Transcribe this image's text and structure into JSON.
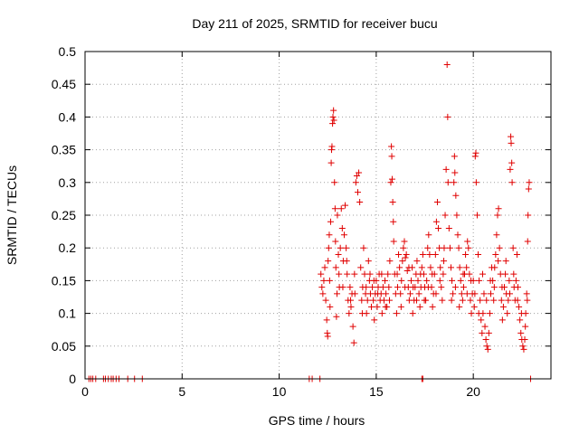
{
  "chart_data": {
    "type": "scatter",
    "title": "Day 211 of 2025, SRMTID for receiver bucu",
    "xlabel": "GPS time / hours",
    "ylabel": "SRMTID / TECUs",
    "xlim": [
      0,
      24
    ],
    "ylim": [
      0,
      0.5
    ],
    "xticks": [
      0,
      5,
      10,
      15,
      20
    ],
    "xtick_labels": [
      "0",
      "5",
      "10",
      "15",
      "20"
    ],
    "yticks": [
      0,
      0.05,
      0.1,
      0.15,
      0.2,
      0.25,
      0.3,
      0.35,
      0.4,
      0.45,
      0.5
    ],
    "ytick_labels": [
      "0",
      "0.05",
      "0.1",
      "0.15",
      "0.2",
      "0.25",
      "0.3",
      "0.35",
      "0.4",
      "0.45",
      "0.5"
    ],
    "grid": true,
    "marker": "+",
    "colors": {
      "series": "#e00000",
      "frame": "#000000",
      "grid": "#a0a0a0"
    },
    "series": [
      {
        "name": "SRMTID",
        "points": [
          [
            0.2,
            0
          ],
          [
            0.3,
            0
          ],
          [
            0.4,
            0
          ],
          [
            0.55,
            0
          ],
          [
            0.95,
            0
          ],
          [
            1.05,
            0
          ],
          [
            1.2,
            0
          ],
          [
            1.35,
            0
          ],
          [
            1.45,
            0
          ],
          [
            1.6,
            0
          ],
          [
            1.75,
            0
          ],
          [
            2.2,
            0
          ],
          [
            2.55,
            0
          ],
          [
            2.95,
            0
          ],
          [
            11.55,
            0
          ],
          [
            11.7,
            0
          ],
          [
            12.1,
            0
          ],
          [
            17.35,
            0
          ],
          [
            17.4,
            0
          ],
          [
            22.95,
            0
          ],
          [
            12.15,
            0.16
          ],
          [
            12.2,
            0.14
          ],
          [
            12.25,
            0.13
          ],
          [
            12.3,
            0.15
          ],
          [
            12.35,
            0.17
          ],
          [
            12.4,
            0.12
          ],
          [
            12.45,
            0.09
          ],
          [
            12.48,
            0.07
          ],
          [
            12.5,
            0.065
          ],
          [
            12.52,
            0.18
          ],
          [
            12.55,
            0.2
          ],
          [
            12.58,
            0.22
          ],
          [
            12.6,
            0.15
          ],
          [
            12.62,
            0.11
          ],
          [
            12.65,
            0.24
          ],
          [
            12.68,
            0.33
          ],
          [
            12.7,
            0.35
          ],
          [
            12.72,
            0.355
          ],
          [
            12.75,
            0.39
          ],
          [
            12.77,
            0.4
          ],
          [
            12.8,
            0.41
          ],
          [
            12.82,
            0.395
          ],
          [
            12.85,
            0.3
          ],
          [
            12.88,
            0.26
          ],
          [
            12.9,
            0.21
          ],
          [
            12.92,
            0.17
          ],
          [
            12.95,
            0.095
          ],
          [
            12.98,
            0.13
          ],
          [
            13.0,
            0.25
          ],
          [
            13.05,
            0.19
          ],
          [
            13.1,
            0.14
          ],
          [
            13.15,
            0.2
          ],
          [
            13.2,
            0.26
          ],
          [
            13.25,
            0.23
          ],
          [
            13.3,
            0.18
          ],
          [
            13.35,
            0.22
          ],
          [
            13.4,
            0.265
          ],
          [
            13.45,
            0.2
          ],
          [
            13.5,
            0.16
          ],
          [
            13.55,
            0.12
          ],
          [
            13.6,
            0.1
          ],
          [
            13.65,
            0.14
          ],
          [
            13.7,
            0.11
          ],
          [
            13.75,
            0.13
          ],
          [
            13.8,
            0.08
          ],
          [
            13.85,
            0.055
          ],
          [
            13.9,
            0.13
          ],
          [
            13.95,
            0.3
          ],
          [
            14.0,
            0.31
          ],
          [
            14.05,
            0.285
          ],
          [
            14.1,
            0.315
          ],
          [
            14.15,
            0.27
          ],
          [
            14.2,
            0.17
          ],
          [
            14.25,
            0.12
          ],
          [
            14.3,
            0.14
          ],
          [
            14.35,
            0.2
          ],
          [
            14.4,
            0.16
          ],
          [
            14.45,
            0.13
          ],
          [
            14.5,
            0.1
          ],
          [
            14.55,
            0.12
          ],
          [
            14.6,
            0.18
          ],
          [
            14.65,
            0.15
          ],
          [
            14.7,
            0.13
          ],
          [
            14.75,
            0.11
          ],
          [
            14.8,
            0.14
          ],
          [
            14.85,
            0.12
          ],
          [
            14.9,
            0.09
          ],
          [
            14.95,
            0.13
          ],
          [
            15.0,
            0.15
          ],
          [
            15.05,
            0.11
          ],
          [
            15.1,
            0.14
          ],
          [
            15.15,
            0.16
          ],
          [
            15.2,
            0.12
          ],
          [
            15.25,
            0.13
          ],
          [
            15.3,
            0.1
          ],
          [
            15.35,
            0.14
          ],
          [
            15.4,
            0.12
          ],
          [
            15.45,
            0.15
          ],
          [
            15.5,
            0.13
          ],
          [
            15.55,
            0.11
          ],
          [
            15.6,
            0.16
          ],
          [
            15.65,
            0.14
          ],
          [
            15.7,
            0.18
          ],
          [
            15.75,
            0.3
          ],
          [
            15.78,
            0.355
          ],
          [
            15.8,
            0.34
          ],
          [
            15.82,
            0.305
          ],
          [
            15.85,
            0.27
          ],
          [
            15.88,
            0.24
          ],
          [
            15.9,
            0.21
          ],
          [
            15.95,
            0.16
          ],
          [
            16.0,
            0.13
          ],
          [
            16.05,
            0.1
          ],
          [
            16.1,
            0.14
          ],
          [
            16.15,
            0.19
          ],
          [
            16.2,
            0.17
          ],
          [
            16.25,
            0.13
          ],
          [
            16.3,
            0.15
          ],
          [
            16.35,
            0.18
          ],
          [
            16.4,
            0.2
          ],
          [
            16.45,
            0.21
          ],
          [
            16.5,
            0.185
          ],
          [
            16.55,
            0.19
          ],
          [
            16.6,
            0.165
          ],
          [
            16.65,
            0.14
          ],
          [
            16.7,
            0.12
          ],
          [
            16.75,
            0.13
          ],
          [
            16.8,
            0.15
          ],
          [
            16.85,
            0.17
          ],
          [
            16.9,
            0.14
          ],
          [
            16.95,
            0.12
          ],
          [
            17.0,
            0.14
          ],
          [
            17.05,
            0.16
          ],
          [
            17.1,
            0.18
          ],
          [
            17.15,
            0.15
          ],
          [
            17.2,
            0.13
          ],
          [
            17.25,
            0.11
          ],
          [
            17.3,
            0.14
          ],
          [
            17.35,
            0.17
          ],
          [
            17.4,
            0.19
          ],
          [
            17.45,
            0.16
          ],
          [
            17.5,
            0.14
          ],
          [
            17.55,
            0.12
          ],
          [
            17.6,
            0.15
          ],
          [
            17.65,
            0.2
          ],
          [
            17.7,
            0.22
          ],
          [
            17.75,
            0.19
          ],
          [
            17.8,
            0.17
          ],
          [
            17.85,
            0.14
          ],
          [
            17.9,
            0.11
          ],
          [
            17.95,
            0.13
          ],
          [
            18.0,
            0.16
          ],
          [
            18.05,
            0.19
          ],
          [
            18.1,
            0.24
          ],
          [
            18.15,
            0.27
          ],
          [
            18.2,
            0.23
          ],
          [
            18.25,
            0.2
          ],
          [
            18.3,
            0.17
          ],
          [
            18.35,
            0.14
          ],
          [
            18.4,
            0.12
          ],
          [
            18.45,
            0.16
          ],
          [
            18.5,
            0.2
          ],
          [
            18.55,
            0.25
          ],
          [
            18.6,
            0.32
          ],
          [
            18.65,
            0.48
          ],
          [
            18.68,
            0.4
          ],
          [
            18.7,
            0.3
          ],
          [
            18.75,
            0.23
          ],
          [
            18.8,
            0.2
          ],
          [
            18.85,
            0.17
          ],
          [
            18.9,
            0.15
          ],
          [
            18.95,
            0.13
          ],
          [
            19.0,
            0.3
          ],
          [
            19.03,
            0.34
          ],
          [
            19.05,
            0.315
          ],
          [
            19.1,
            0.28
          ],
          [
            19.15,
            0.25
          ],
          [
            19.2,
            0.22
          ],
          [
            19.25,
            0.2
          ],
          [
            19.3,
            0.17
          ],
          [
            19.35,
            0.15
          ],
          [
            19.4,
            0.13
          ],
          [
            19.45,
            0.12
          ],
          [
            19.5,
            0.14
          ],
          [
            19.55,
            0.16
          ],
          [
            19.6,
            0.19
          ],
          [
            19.65,
            0.17
          ],
          [
            19.7,
            0.21
          ],
          [
            19.75,
            0.2
          ],
          [
            19.8,
            0.16
          ],
          [
            19.85,
            0.12
          ],
          [
            19.9,
            0.1
          ],
          [
            19.95,
            0.13
          ],
          [
            20.0,
            0.15
          ],
          [
            20.05,
            0.11
          ],
          [
            20.1,
            0.34
          ],
          [
            20.13,
            0.345
          ],
          [
            20.15,
            0.3
          ],
          [
            20.2,
            0.25
          ],
          [
            20.25,
            0.19
          ],
          [
            20.3,
            0.15
          ],
          [
            20.35,
            0.12
          ],
          [
            20.4,
            0.09
          ],
          [
            20.45,
            0.07
          ],
          [
            20.5,
            0.1
          ],
          [
            20.55,
            0.13
          ],
          [
            20.6,
            0.08
          ],
          [
            20.65,
            0.06
          ],
          [
            20.7,
            0.05
          ],
          [
            20.75,
            0.045
          ],
          [
            20.8,
            0.07
          ],
          [
            20.85,
            0.1
          ],
          [
            20.9,
            0.13
          ],
          [
            20.95,
            0.17
          ],
          [
            21.0,
            0.15
          ],
          [
            21.05,
            0.12
          ],
          [
            21.1,
            0.17
          ],
          [
            21.15,
            0.19
          ],
          [
            21.2,
            0.22
          ],
          [
            21.25,
            0.25
          ],
          [
            21.3,
            0.26
          ],
          [
            21.35,
            0.2
          ],
          [
            21.4,
            0.16
          ],
          [
            21.45,
            0.12
          ],
          [
            21.5,
            0.09
          ],
          [
            21.55,
            0.11
          ],
          [
            21.6,
            0.14
          ],
          [
            21.65,
            0.16
          ],
          [
            21.7,
            0.13
          ],
          [
            21.75,
            0.1
          ],
          [
            21.8,
            0.12
          ],
          [
            21.85,
            0.15
          ],
          [
            21.9,
            0.32
          ],
          [
            21.93,
            0.37
          ],
          [
            21.95,
            0.36
          ],
          [
            21.98,
            0.33
          ],
          [
            22.0,
            0.3
          ],
          [
            22.05,
            0.2
          ],
          [
            22.1,
            0.14
          ],
          [
            22.15,
            0.12
          ],
          [
            22.2,
            0.15
          ],
          [
            22.25,
            0.19
          ],
          [
            22.3,
            0.14
          ],
          [
            22.35,
            0.11
          ],
          [
            22.4,
            0.09
          ],
          [
            22.45,
            0.07
          ],
          [
            22.5,
            0.06
          ],
          [
            22.55,
            0.05
          ],
          [
            22.6,
            0.045
          ],
          [
            22.65,
            0.06
          ],
          [
            22.7,
            0.1
          ],
          [
            22.75,
            0.13
          ],
          [
            22.78,
            0.12
          ],
          [
            22.8,
            0.21
          ],
          [
            22.82,
            0.25
          ],
          [
            22.85,
            0.29
          ],
          [
            22.88,
            0.3
          ],
          [
            13.08,
            0.16
          ],
          [
            13.28,
            0.14
          ],
          [
            13.48,
            0.18
          ],
          [
            13.68,
            0.12
          ],
          [
            13.88,
            0.16
          ],
          [
            14.28,
            0.1
          ],
          [
            14.48,
            0.14
          ],
          [
            14.68,
            0.16
          ],
          [
            14.88,
            0.15
          ],
          [
            15.08,
            0.13
          ],
          [
            15.28,
            0.16
          ],
          [
            15.48,
            0.11
          ],
          [
            15.68,
            0.12
          ],
          [
            16.08,
            0.16
          ],
          [
            16.28,
            0.11
          ],
          [
            16.48,
            0.14
          ],
          [
            16.68,
            0.17
          ],
          [
            16.88,
            0.1
          ],
          [
            17.08,
            0.12
          ],
          [
            17.28,
            0.16
          ],
          [
            17.48,
            0.12
          ],
          [
            17.68,
            0.14
          ],
          [
            17.88,
            0.16
          ],
          [
            18.08,
            0.13
          ],
          [
            18.28,
            0.15
          ],
          [
            18.48,
            0.18
          ],
          [
            18.88,
            0.12
          ],
          [
            19.08,
            0.14
          ],
          [
            19.28,
            0.11
          ],
          [
            19.48,
            0.16
          ],
          [
            19.68,
            0.13
          ],
          [
            19.88,
            0.15
          ],
          [
            20.08,
            0.13
          ],
          [
            20.28,
            0.1
          ],
          [
            20.48,
            0.16
          ],
          [
            20.68,
            0.12
          ],
          [
            20.88,
            0.15
          ],
          [
            21.08,
            0.14
          ],
          [
            21.28,
            0.18
          ],
          [
            21.48,
            0.14
          ],
          [
            21.68,
            0.18
          ],
          [
            21.88,
            0.13
          ],
          [
            22.08,
            0.16
          ],
          [
            22.28,
            0.12
          ],
          [
            22.48,
            0.1
          ],
          [
            22.68,
            0.08
          ]
        ]
      }
    ]
  }
}
